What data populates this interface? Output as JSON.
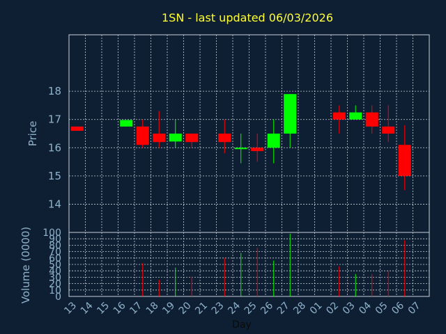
{
  "title": "1SN - last updated 06/03/2026",
  "colors": {
    "background": "#0f1f33",
    "grid": "#c8d0d8",
    "axis": "#c8d0d8",
    "up": "#00ff00",
    "down": "#ff0000",
    "title": "#ffff33",
    "ticks": "#8fb3cc",
    "xlabel": "#0a0a0a"
  },
  "chart_data": [
    {
      "type": "candlestick",
      "ylabel": "Price",
      "ylim": [
        13,
        20
      ],
      "yticks": [
        14,
        15,
        16,
        17,
        18
      ],
      "grid": true,
      "categories": [
        "13",
        "14",
        "15",
        "16",
        "17",
        "18",
        "19",
        "20",
        "21",
        "23",
        "24",
        "25",
        "26",
        "27",
        "28",
        "01",
        "02",
        "03",
        "04",
        "05",
        "06",
        "07"
      ],
      "candles": [
        {
          "x": "13",
          "open": 16.75,
          "close": 16.6,
          "high": 16.75,
          "low": 16.6
        },
        {
          "x": "16",
          "open": 16.75,
          "close": 16.98,
          "high": 16.98,
          "low": 16.75
        },
        {
          "x": "17",
          "open": 16.75,
          "close": 16.1,
          "high": 17.0,
          "low": 16.0
        },
        {
          "x": "18",
          "open": 16.5,
          "close": 16.2,
          "high": 17.3,
          "low": 16.0
        },
        {
          "x": "19",
          "open": 16.22,
          "close": 16.5,
          "high": 17.0,
          "low": 16.0
        },
        {
          "x": "20",
          "open": 16.5,
          "close": 16.2,
          "high": 16.5,
          "low": 16.0
        },
        {
          "x": "23",
          "open": 16.5,
          "close": 16.2,
          "high": 17.0,
          "low": 15.8
        },
        {
          "x": "24",
          "open": 15.95,
          "close": 16.0,
          "high": 16.5,
          "low": 15.45
        },
        {
          "x": "25",
          "open": 16.0,
          "close": 15.88,
          "high": 16.5,
          "low": 15.5
        },
        {
          "x": "26",
          "open": 16.0,
          "close": 16.5,
          "high": 17.0,
          "low": 15.45
        },
        {
          "x": "27",
          "open": 16.5,
          "close": 17.9,
          "high": 17.9,
          "low": 16.0
        },
        {
          "x": "02",
          "open": 17.25,
          "close": 17.0,
          "high": 17.5,
          "low": 16.5
        },
        {
          "x": "03",
          "open": 17.0,
          "close": 17.25,
          "high": 17.5,
          "low": 17.0
        },
        {
          "x": "04",
          "open": 17.25,
          "close": 16.75,
          "high": 17.5,
          "low": 16.5
        },
        {
          "x": "05",
          "open": 16.75,
          "close": 16.5,
          "high": 17.5,
          "low": 16.2
        },
        {
          "x": "06",
          "open": 16.1,
          "close": 15.0,
          "high": 16.8,
          "low": 14.5
        }
      ]
    },
    {
      "type": "bar",
      "ylabel": "Volume (0000)",
      "xlabel": "Day",
      "ylim": [
        0,
        100
      ],
      "yticks": [
        0,
        10,
        20,
        30,
        40,
        50,
        60,
        70,
        80,
        90,
        100
      ],
      "grid": true,
      "volumes": [
        {
          "x": "17",
          "value": 52,
          "direction": "down"
        },
        {
          "x": "18",
          "value": 26,
          "direction": "down"
        },
        {
          "x": "19",
          "value": 45,
          "direction": "up"
        },
        {
          "x": "20",
          "value": 31,
          "direction": "down"
        },
        {
          "x": "23",
          "value": 60,
          "direction": "down"
        },
        {
          "x": "24",
          "value": 68,
          "direction": "up"
        },
        {
          "x": "25",
          "value": 76,
          "direction": "down"
        },
        {
          "x": "26",
          "value": 56,
          "direction": "up"
        },
        {
          "x": "27",
          "value": 98,
          "direction": "up"
        },
        {
          "x": "02",
          "value": 47,
          "direction": "down"
        },
        {
          "x": "03",
          "value": 35,
          "direction": "up"
        },
        {
          "x": "04",
          "value": 35,
          "direction": "down"
        },
        {
          "x": "05",
          "value": 40,
          "direction": "down"
        },
        {
          "x": "06",
          "value": 88,
          "direction": "down"
        }
      ]
    }
  ]
}
